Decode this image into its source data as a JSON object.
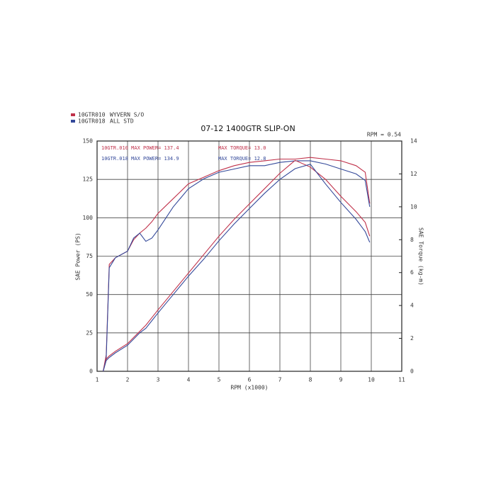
{
  "chart_data": {
    "type": "line",
    "title": "07-12 1400GTR SLIP-ON",
    "corner_note": "RPM = 0.54",
    "xlabel": "RPM (x1000)",
    "ylabel": "SAE Power (PS)",
    "y2label": "SAE Torque (kg-m)",
    "legend": [
      {
        "code": "10GTR010",
        "label": "WYVERN S/O",
        "color": "#c0314a"
      },
      {
        "code": "10GTR018",
        "label": "ALL STD",
        "color": "#34499a"
      }
    ],
    "annotations": [
      {
        "text": "10GTR.010  MAX POWER= 137.4",
        "color": "#c0314a"
      },
      {
        "text": "MAX TORQUE= 13.0",
        "color": "#c0314a"
      },
      {
        "text": "10GTR.018  MAX POWER= 134.9",
        "color": "#34499a"
      },
      {
        "text": "MAX TORQUE= 12.8",
        "color": "#34499a"
      }
    ],
    "xlim": [
      1,
      11
    ],
    "xticks": [
      1,
      2,
      3,
      4,
      5,
      6,
      7,
      8,
      9,
      10,
      11
    ],
    "ylim": [
      0,
      150
    ],
    "yticks": [
      0,
      25,
      50,
      75,
      100,
      125,
      150
    ],
    "y2lim": [
      0,
      14
    ],
    "y2ticks": [
      0,
      2,
      4,
      6,
      8,
      10,
      12,
      14
    ],
    "grid": true,
    "x": [
      1.2,
      1.3,
      1.4,
      1.6,
      2.0,
      2.2,
      2.4,
      2.6,
      2.8,
      3.0,
      3.5,
      4.0,
      4.5,
      5.0,
      5.5,
      6.0,
      6.5,
      7.0,
      7.5,
      8.0,
      8.5,
      9.0,
      9.5,
      9.8,
      9.95
    ],
    "series": [
      {
        "color": "#c0314a",
        "axis": "y2",
        "values": [
          0,
          1.0,
          6.5,
          6.9,
          7.3,
          8.0,
          8.4,
          8.7,
          9.1,
          9.6,
          10.5,
          11.4,
          11.8,
          12.2,
          12.5,
          12.7,
          12.8,
          12.9,
          12.9,
          13.0,
          12.9,
          12.8,
          12.5,
          12.1,
          10.2
        ]
      },
      {
        "color": "#34499a",
        "axis": "y2",
        "values": [
          0,
          0.8,
          6.3,
          6.9,
          7.3,
          8.1,
          8.4,
          7.9,
          8.1,
          8.6,
          10.0,
          11.1,
          11.7,
          12.1,
          12.3,
          12.5,
          12.5,
          12.7,
          12.8,
          12.8,
          12.6,
          12.3,
          12.0,
          11.6,
          10.0
        ]
      },
      {
        "color": "#c0314a",
        "values": [
          0,
          8,
          10,
          13,
          18,
          22,
          26,
          30,
          35,
          40,
          52,
          64,
          76,
          88,
          99,
          109,
          119,
          129,
          137.4,
          133,
          125,
          114,
          104,
          97,
          88
        ]
      },
      {
        "color": "#34499a",
        "values": [
          0,
          7,
          9,
          12,
          17,
          21,
          25,
          28,
          33,
          38,
          50,
          62,
          73,
          85,
          96,
          106,
          116,
          125,
          132,
          134.9,
          122,
          110,
          99,
          91,
          84
        ]
      }
    ]
  }
}
